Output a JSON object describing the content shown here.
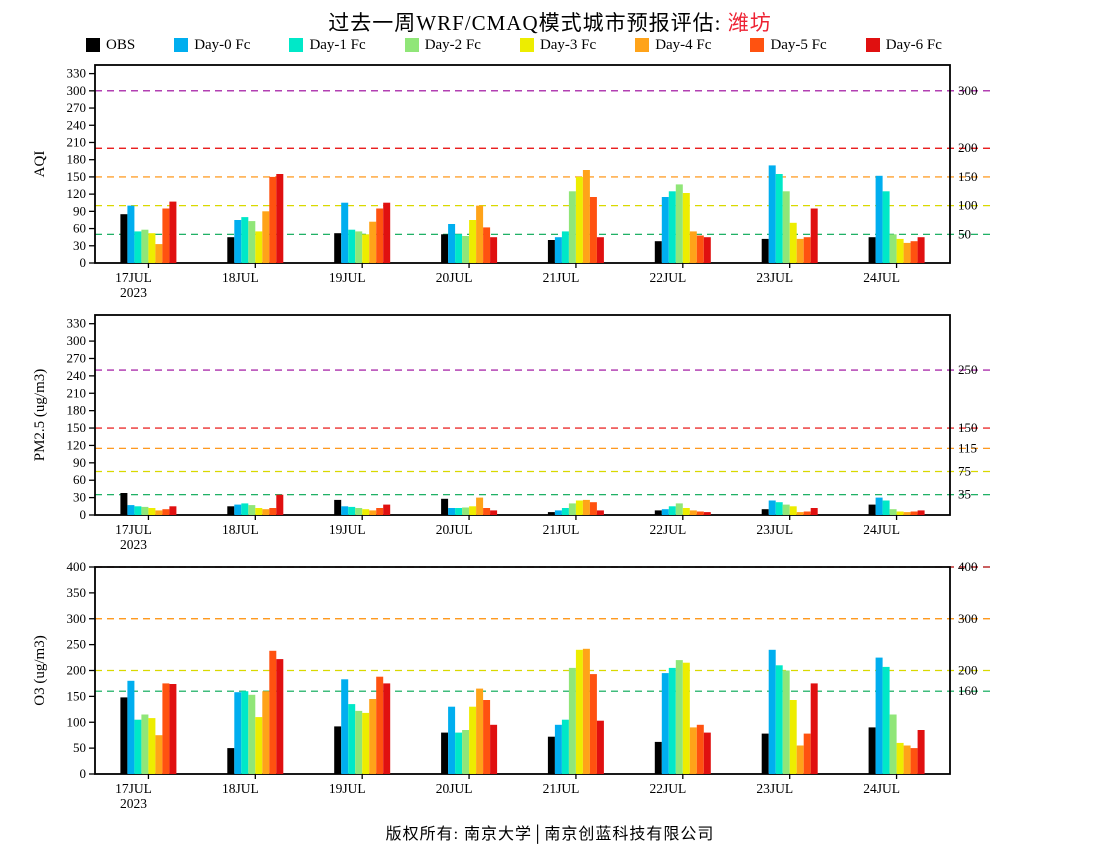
{
  "title": {
    "text": "过去一周WRF/CMAQ模式城市预报评估: ",
    "highlight": "潍坊",
    "highlight_color": "#EE2233"
  },
  "legend": [
    {
      "label": "OBS",
      "color": "#000000"
    },
    {
      "label": "Day-0 Fc",
      "color": "#00AEEF"
    },
    {
      "label": "Day-1 Fc",
      "color": "#00E8C8"
    },
    {
      "label": "Day-2 Fc",
      "color": "#90E678"
    },
    {
      "label": "Day-3 Fc",
      "color": "#EDED00"
    },
    {
      "label": "Day-4 Fc",
      "color": "#FFA319"
    },
    {
      "label": "Day-5 Fc",
      "color": "#FF5210"
    },
    {
      "label": "Day-6 Fc",
      "color": "#E01010"
    }
  ],
  "footer": "版权所有: 南京大学│南京创蓝科技有限公司",
  "chart_data": [
    {
      "type": "bar",
      "ylabel": "AQI",
      "ylim": [
        0,
        345
      ],
      "yticks": [
        0,
        30,
        60,
        90,
        120,
        150,
        180,
        210,
        240,
        270,
        300,
        330
      ],
      "categories": [
        "17JUL",
        "18JUL",
        "19JUL",
        "20JUL",
        "21JUL",
        "22JUL",
        "23JUL",
        "24JUL"
      ],
      "first_category_year": "2023",
      "grid": false,
      "legend_position": "top",
      "ref_lines": [
        {
          "value": 50,
          "color": "#00A651",
          "label": "50"
        },
        {
          "value": 100,
          "color": "#D9D900",
          "label": "100"
        },
        {
          "value": 150,
          "color": "#FF8C00",
          "label": "150"
        },
        {
          "value": 200,
          "color": "#E60000",
          "label": "200"
        },
        {
          "value": 300,
          "color": "#990099",
          "label": "300"
        }
      ],
      "series": [
        {
          "name": "OBS",
          "color": "#000000",
          "values": [
            85,
            45,
            52,
            50,
            40,
            38,
            42,
            45
          ]
        },
        {
          "name": "Day-0 Fc",
          "color": "#00AEEF",
          "values": [
            100,
            75,
            105,
            68,
            45,
            115,
            170,
            152
          ]
        },
        {
          "name": "Day-1 Fc",
          "color": "#00E8C8",
          "values": [
            55,
            80,
            58,
            50,
            55,
            125,
            155,
            125
          ]
        },
        {
          "name": "Day-2 Fc",
          "color": "#90E678",
          "values": [
            58,
            73,
            55,
            47,
            125,
            137,
            125,
            50
          ]
        },
        {
          "name": "Day-3 Fc",
          "color": "#EDED00",
          "values": [
            52,
            55,
            50,
            75,
            150,
            122,
            70,
            42
          ]
        },
        {
          "name": "Day-4 Fc",
          "color": "#FFA319",
          "values": [
            33,
            90,
            72,
            100,
            162,
            55,
            42,
            35
          ]
        },
        {
          "name": "Day-5 Fc",
          "color": "#FF5210",
          "values": [
            95,
            150,
            95,
            62,
            115,
            48,
            45,
            38
          ]
        },
        {
          "name": "Day-6 Fc",
          "color": "#E01010",
          "values": [
            107,
            155,
            105,
            45,
            45,
            45,
            95,
            45
          ]
        }
      ]
    },
    {
      "type": "bar",
      "ylabel": "PM2.5 (ug/m3)",
      "ylim": [
        0,
        345
      ],
      "yticks": [
        0,
        30,
        60,
        90,
        120,
        150,
        180,
        210,
        240,
        270,
        300,
        330
      ],
      "categories": [
        "17JUL",
        "18JUL",
        "19JUL",
        "20JUL",
        "21JUL",
        "22JUL",
        "23JUL",
        "24JUL"
      ],
      "first_category_year": "2023",
      "grid": false,
      "legend_position": "top",
      "ref_lines": [
        {
          "value": 35,
          "color": "#00A651",
          "label": "35"
        },
        {
          "value": 75,
          "color": "#D9D900",
          "label": "75"
        },
        {
          "value": 115,
          "color": "#FF8C00",
          "label": "115"
        },
        {
          "value": 150,
          "color": "#E60000",
          "label": "150"
        },
        {
          "value": 250,
          "color": "#990099",
          "label": "250"
        }
      ],
      "series": [
        {
          "name": "OBS",
          "color": "#000000",
          "values": [
            38,
            15,
            26,
            28,
            5,
            8,
            10,
            18
          ]
        },
        {
          "name": "Day-0 Fc",
          "color": "#00AEEF",
          "values": [
            17,
            18,
            15,
            12,
            8,
            10,
            25,
            30
          ]
        },
        {
          "name": "Day-1 Fc",
          "color": "#00E8C8",
          "values": [
            15,
            20,
            14,
            12,
            12,
            15,
            22,
            25
          ]
        },
        {
          "name": "Day-2 Fc",
          "color": "#90E678",
          "values": [
            14,
            17,
            12,
            13,
            20,
            20,
            18,
            10
          ]
        },
        {
          "name": "Day-3 Fc",
          "color": "#EDED00",
          "values": [
            12,
            12,
            10,
            15,
            25,
            12,
            15,
            6
          ]
        },
        {
          "name": "Day-4 Fc",
          "color": "#FFA319",
          "values": [
            8,
            10,
            8,
            30,
            26,
            8,
            5,
            5
          ]
        },
        {
          "name": "Day-5 Fc",
          "color": "#FF5210",
          "values": [
            10,
            12,
            12,
            12,
            22,
            6,
            6,
            6
          ]
        },
        {
          "name": "Day-6 Fc",
          "color": "#E01010",
          "values": [
            15,
            35,
            18,
            8,
            8,
            5,
            12,
            8
          ]
        }
      ]
    },
    {
      "type": "bar",
      "ylabel": "O3 (ug/m3)",
      "ylim": [
        0,
        400
      ],
      "yticks": [
        0,
        50,
        100,
        150,
        200,
        250,
        300,
        350,
        400
      ],
      "categories": [
        "17JUL",
        "18JUL",
        "19JUL",
        "20JUL",
        "21JUL",
        "22JUL",
        "23JUL",
        "24JUL"
      ],
      "first_category_year": "2023",
      "grid": false,
      "legend_position": "top",
      "ref_lines": [
        {
          "value": 160,
          "color": "#00A651",
          "label": "160"
        },
        {
          "value": 200,
          "color": "#D9D900",
          "label": "200"
        },
        {
          "value": 300,
          "color": "#FF8C00",
          "label": "300"
        },
        {
          "value": 400,
          "color": "#AA0000",
          "label": "400"
        }
      ],
      "series": [
        {
          "name": "OBS",
          "color": "#000000",
          "values": [
            148,
            50,
            92,
            80,
            72,
            62,
            78,
            90
          ]
        },
        {
          "name": "Day-0 Fc",
          "color": "#00AEEF",
          "values": [
            180,
            158,
            183,
            130,
            95,
            195,
            240,
            225
          ]
        },
        {
          "name": "Day-1 Fc",
          "color": "#00E8C8",
          "values": [
            105,
            160,
            135,
            80,
            105,
            205,
            210,
            207
          ]
        },
        {
          "name": "Day-2 Fc",
          "color": "#90E678",
          "values": [
            115,
            153,
            122,
            85,
            205,
            220,
            200,
            115
          ]
        },
        {
          "name": "Day-3 Fc",
          "color": "#EDED00",
          "values": [
            108,
            110,
            118,
            130,
            240,
            215,
            143,
            60
          ]
        },
        {
          "name": "Day-4 Fc",
          "color": "#FFA319",
          "values": [
            75,
            160,
            145,
            165,
            242,
            90,
            55,
            55
          ]
        },
        {
          "name": "Day-5 Fc",
          "color": "#FF5210",
          "values": [
            175,
            238,
            188,
            143,
            193,
            95,
            78,
            50
          ]
        },
        {
          "name": "Day-6 Fc",
          "color": "#E01010",
          "values": [
            174,
            222,
            175,
            95,
            103,
            80,
            175,
            85
          ]
        }
      ]
    }
  ]
}
